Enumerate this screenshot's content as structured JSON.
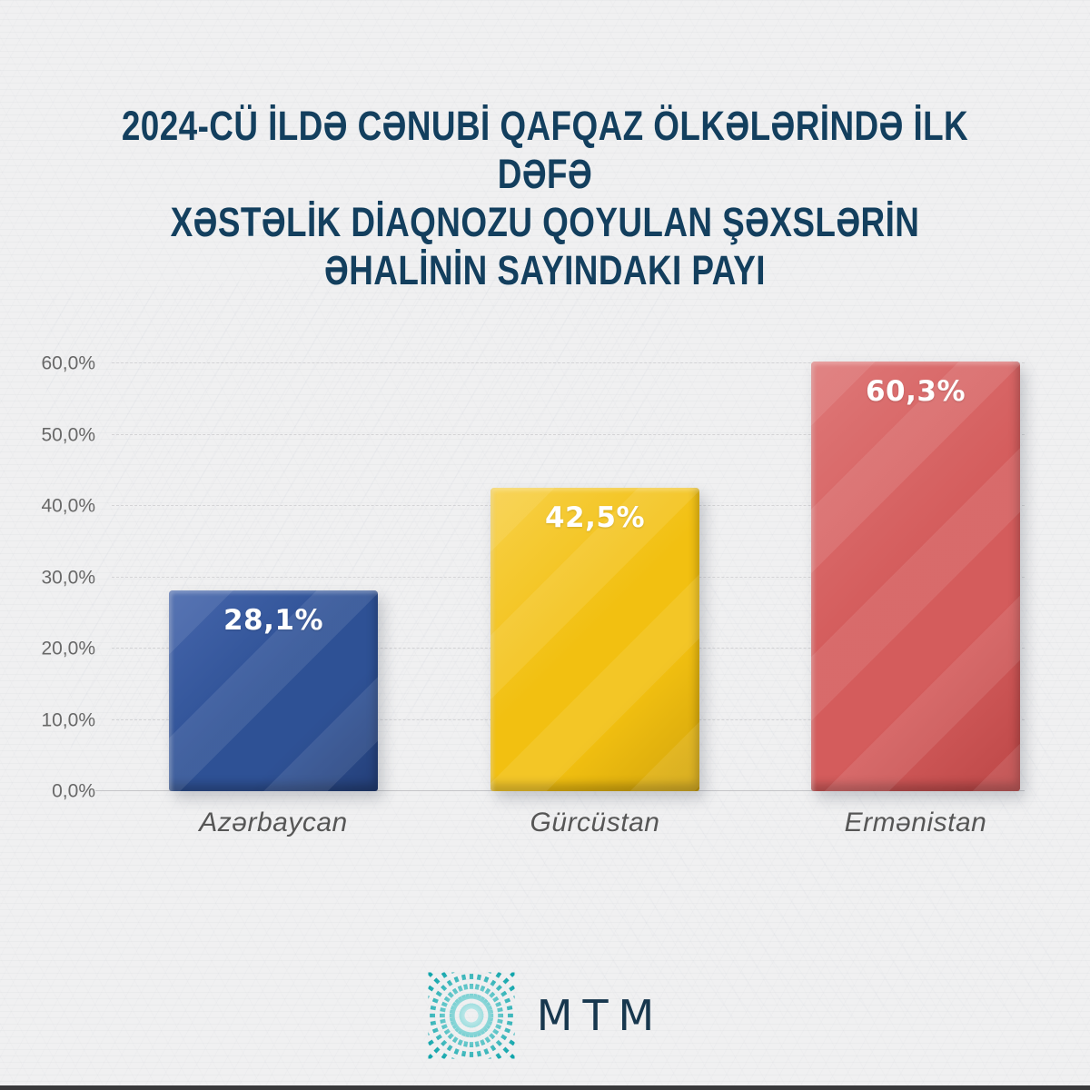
{
  "page": {
    "background": "#f0f0f1",
    "bottom_strip_color": "#39393b"
  },
  "title": {
    "lines": [
      "2024-CÜ İLDƏ CƏNUBİ QAFQAZ ÖLKƏLƏRİNDƏ İLK DƏFƏ",
      "XƏSTƏLİK DİAQNOZU QOYULAN ŞƏXSLƏRİN",
      "ƏHALİNİN SAYINDAKI PAYI"
    ],
    "color": "#133f5e"
  },
  "chart_data": {
    "type": "bar",
    "title": "2024-cü ildə Cənubi Qafqaz ölkələrində ilk dəfə xəstəlik diaqnozu qoyulan şəxslərin əhalinin sayındakı payı",
    "categories": [
      "Azərbaycan",
      "Gürcüstan",
      "Ermənistan"
    ],
    "values": [
      28.1,
      42.5,
      60.3
    ],
    "value_labels": [
      "28,1%",
      "42,5%",
      "60,3%"
    ],
    "colors": [
      {
        "base": "#2e5195",
        "light": "#4666ac",
        "dark": "#243f78"
      },
      {
        "base": "#f2c011",
        "light": "#f7d049",
        "dark": "#d2a40b"
      },
      {
        "base": "#d45c5c",
        "light": "#de7878",
        "dark": "#bc4747"
      }
    ],
    "xlabel": "",
    "ylabel": "",
    "ylim": [
      0,
      60
    ],
    "yticks": [
      "0,0%",
      "10,0%",
      "20,0%",
      "30,0%",
      "40,0%",
      "50,0%",
      "60,0%"
    ],
    "grid": "horizontal-dashed",
    "legend": "none"
  },
  "footer": {
    "brand": "MTM",
    "logo_icon": "teal-burst-icon",
    "accent_color": "#14a7ad",
    "brand_color": "#17374e"
  }
}
